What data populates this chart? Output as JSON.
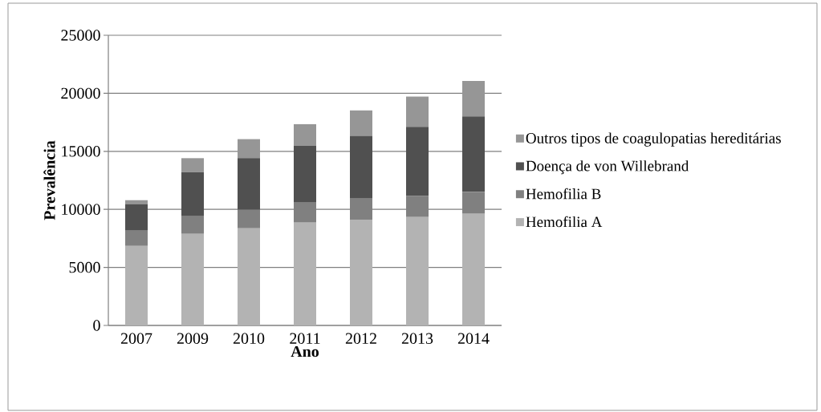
{
  "chart_data": {
    "type": "bar",
    "stacked": true,
    "xlabel": "Ano",
    "ylabel": "Prevalência",
    "categories": [
      "2007",
      "2009",
      "2010",
      "2011",
      "2012",
      "2013",
      "2014"
    ],
    "series": [
      {
        "name": "Hemofilia A",
        "color": "#b3b3b3",
        "values": [
          6850,
          7890,
          8370,
          8860,
          9110,
          9340,
          9620
        ]
      },
      {
        "name": "Hemofilia B",
        "color": "#808080",
        "values": [
          1310,
          1520,
          1590,
          1730,
          1820,
          1820,
          1870
        ]
      },
      {
        "name": "Doença de von Willebrand",
        "color": "#505050",
        "values": [
          2310,
          3800,
          4450,
          4880,
          5400,
          5950,
          6520
        ]
      },
      {
        "name": "Outros tipos de coagulopatias hereditárias",
        "color": "#969696",
        "values": [
          320,
          1200,
          1640,
          1870,
          2190,
          2610,
          3050
        ]
      }
    ],
    "ylim": [
      0,
      25000
    ],
    "yticks": [
      0,
      5000,
      10000,
      15000,
      20000,
      25000
    ],
    "grid": "y",
    "legend": "right"
  }
}
